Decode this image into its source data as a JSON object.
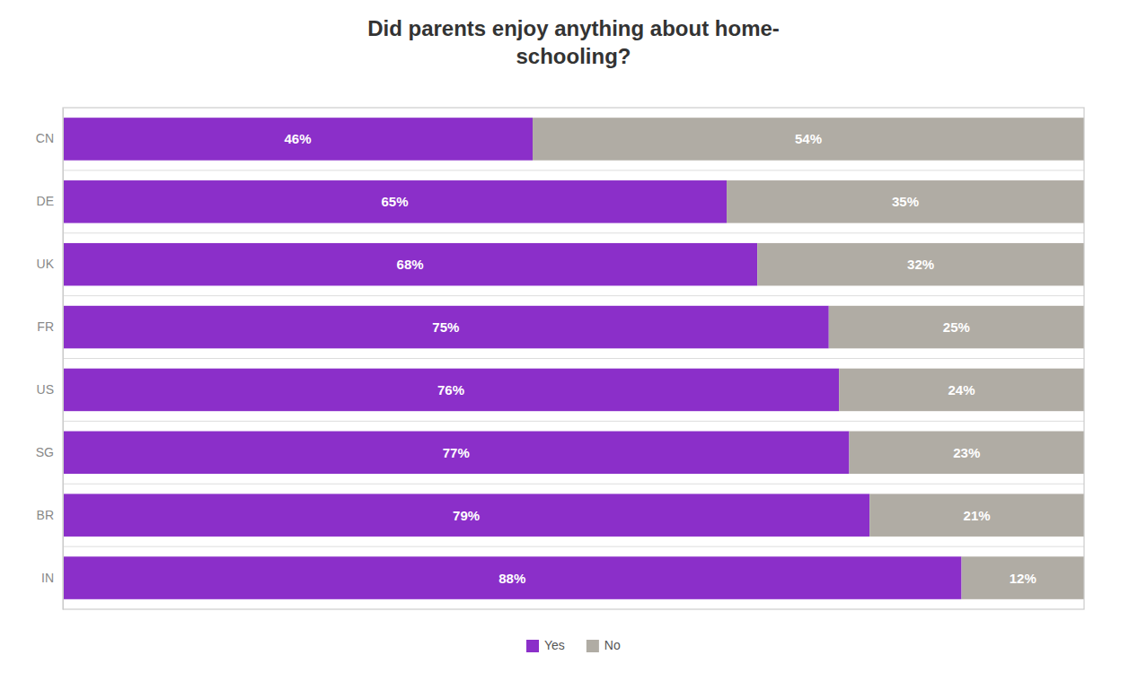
{
  "chart_data": {
    "type": "bar",
    "orientation": "horizontal",
    "stacked": true,
    "data_labels": true,
    "title": "Did parents enjoy anything about home-\nschooling?",
    "categories": [
      "CN",
      "DE",
      "UK",
      "FR",
      "US",
      "SG",
      "BR",
      "IN"
    ],
    "series": [
      {
        "name": "Yes",
        "color": "#8B2FC9",
        "values": [
          46,
          65,
          68,
          75,
          76,
          77,
          79,
          88
        ],
        "value_labels": [
          "46%",
          "65%",
          "68%",
          "75%",
          "76%",
          "77%",
          "79%",
          "88%"
        ]
      },
      {
        "name": "No",
        "color": "#B0ACA4",
        "values": [
          54,
          35,
          32,
          25,
          24,
          23,
          21,
          12
        ],
        "value_labels": [
          "54%",
          "35%",
          "32%",
          "25%",
          "24%",
          "23%",
          "21%",
          "12%"
        ]
      }
    ],
    "xlim": [
      0,
      100
    ],
    "tick_labels": "y",
    "grid": false,
    "legend": "bottom"
  }
}
